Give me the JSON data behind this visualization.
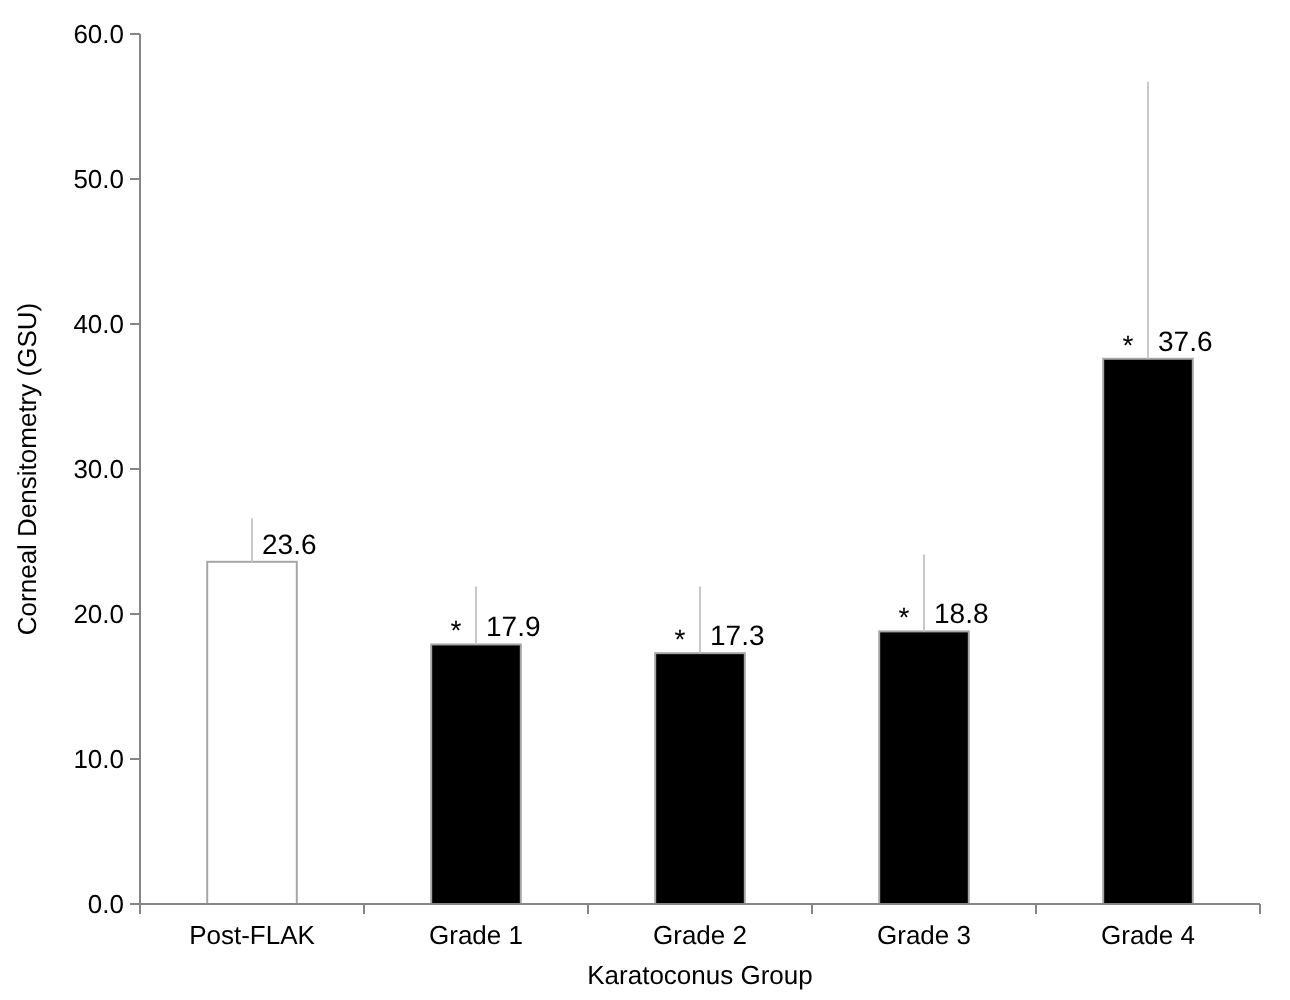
{
  "chart_data": {
    "type": "bar",
    "xlabel": "Karatoconus Group",
    "ylabel": "Corneal Densitometry (GSU)",
    "categories": [
      "Post-FLAK",
      "Grade 1",
      "Grade 2",
      "Grade 3",
      "Grade 4"
    ],
    "values": [
      23.6,
      17.9,
      17.3,
      18.8,
      37.6
    ],
    "colors": [
      "#ffffff",
      "#000000",
      "#000000",
      "#000000",
      "#000000"
    ],
    "errors": [
      [
        23.6,
        26.6
      ],
      [
        17.9,
        21.9
      ],
      [
        17.3,
        21.9
      ],
      [
        18.8,
        24.1
      ],
      [
        37.6,
        56.7
      ]
    ],
    "data_labels": true,
    "annotations": [
      {
        "text": "*",
        "x": "Grade 1",
        "y": 17.9
      },
      {
        "text": "*",
        "x": "Grade 2",
        "y": 17.3
      },
      {
        "text": "*",
        "x": "Grade 3",
        "y": 18.8
      },
      {
        "text": "*",
        "x": "Grade 4",
        "y": 37.6
      }
    ],
    "ylim": [
      0,
      60
    ],
    "yticks": [
      {
        "value": 0,
        "label": "0.0"
      },
      {
        "value": 10,
        "label": "10.0"
      },
      {
        "value": 20,
        "label": "20.0"
      },
      {
        "value": 30,
        "label": "30.0"
      },
      {
        "value": 40,
        "label": "40.0"
      },
      {
        "value": 50,
        "label": "50.0"
      },
      {
        "value": 60,
        "label": "60.0"
      }
    ],
    "grid": false
  }
}
